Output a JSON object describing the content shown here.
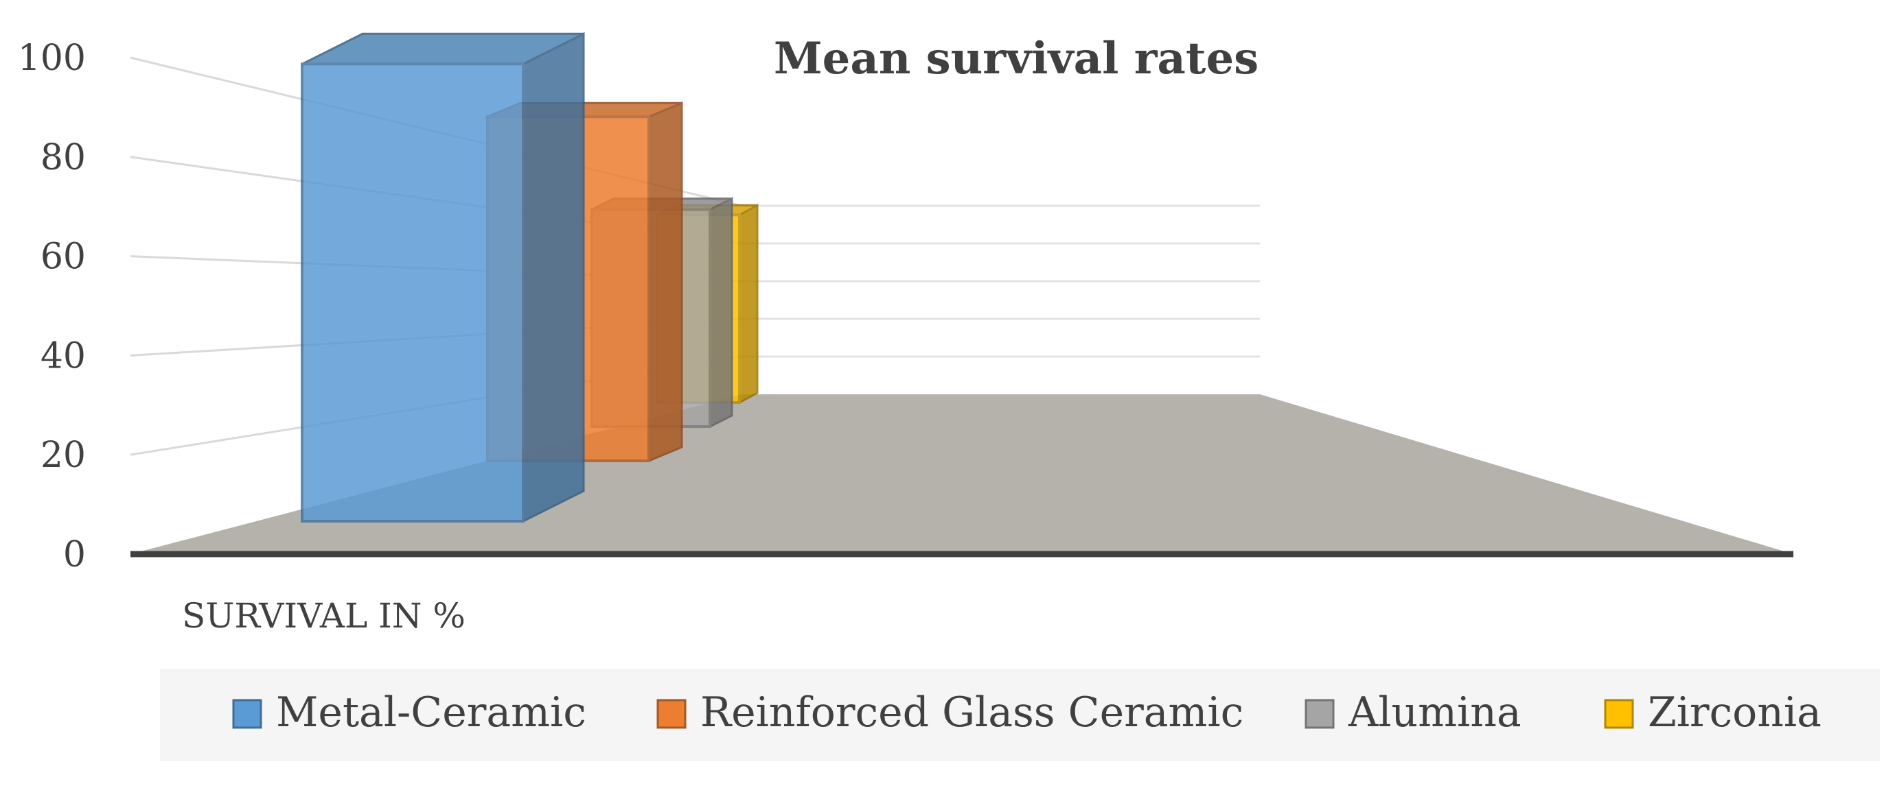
{
  "chart_data": {
    "type": "bar",
    "title": "Mean survival rates",
    "xlabel": "",
    "ylabel": "",
    "categories": [
      "SURVIVAL IN %"
    ],
    "ylim": [
      0,
      100
    ],
    "yticks": [
      0,
      20,
      40,
      60,
      80,
      100
    ],
    "grid": true,
    "legend_position": "bottom",
    "series": [
      {
        "name": "Metal-Ceramic",
        "values": [
          94.7
        ],
        "color": "#5B9BD5"
      },
      {
        "name": "Reinforced Glass Ceramic",
        "values": [
          89.6
        ],
        "color": "#ED7D31"
      },
      {
        "name": "Alumina",
        "values": [
          90.4
        ],
        "color": "#A5A5A5"
      },
      {
        "name": "Zirconia",
        "values": [
          91.2
        ],
        "color": "#FFC000"
      }
    ]
  }
}
